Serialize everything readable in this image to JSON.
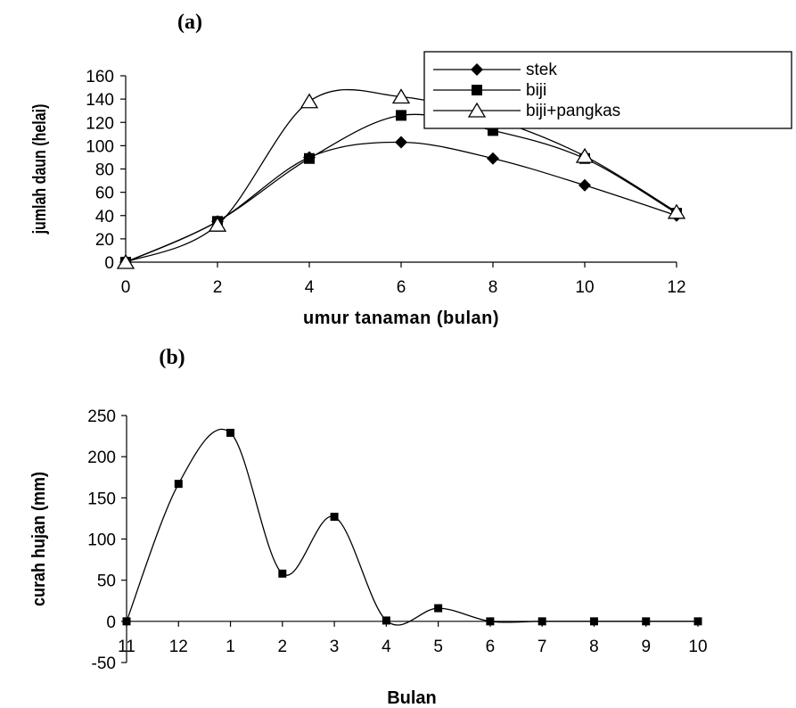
{
  "chart_data": [
    {
      "panel_label": "(a)",
      "type": "line",
      "smoothed": true,
      "xlabel": "umur tanaman (bulan)",
      "ylabel": "jumlah daun (helai)",
      "xlim": [
        0,
        12
      ],
      "ylim": [
        0,
        160
      ],
      "xticks": [
        "0",
        "2",
        "4",
        "6",
        "8",
        "10",
        "12"
      ],
      "yticks": [
        "0",
        "20",
        "40",
        "60",
        "80",
        "100",
        "120",
        "140",
        "160"
      ],
      "x": [
        0,
        2,
        4,
        6,
        8,
        10,
        12
      ],
      "grid": false,
      "legend": "top-right",
      "series": [
        {
          "name": "stek",
          "marker": "diamond",
          "values": [
            0,
            35,
            90,
            103,
            89,
            66,
            40
          ]
        },
        {
          "name": "biji",
          "marker": "square",
          "values": [
            0,
            35,
            89,
            126,
            113,
            89,
            42
          ]
        },
        {
          "name": "biji+pangkas",
          "marker": "triangle-open",
          "values": [
            0,
            32,
            138,
            142,
            123,
            91,
            43
          ]
        }
      ]
    },
    {
      "panel_label": "(b)",
      "type": "line",
      "smoothed": true,
      "xlabel": "Bulan",
      "ylabel": "curah hujan (mm)",
      "ylim": [
        -50,
        250
      ],
      "yticks": [
        "-50",
        "0",
        "50",
        "100",
        "150",
        "200",
        "250"
      ],
      "categories": [
        "11",
        "12",
        "1",
        "2",
        "3",
        "4",
        "5",
        "6",
        "7",
        "8",
        "9",
        "10"
      ],
      "grid": false,
      "series": [
        {
          "marker": "square",
          "values": [
            0,
            167,
            229,
            58,
            127,
            1,
            16,
            0,
            0,
            0,
            0,
            0
          ]
        }
      ]
    }
  ]
}
